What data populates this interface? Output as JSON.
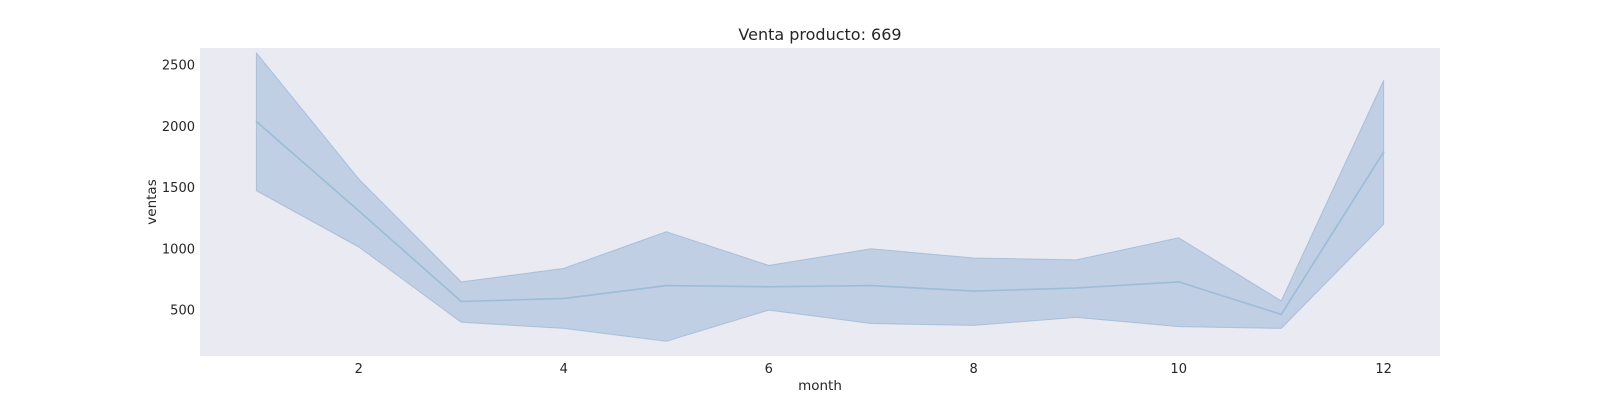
{
  "chart_data": {
    "type": "line",
    "title": "Venta producto: 669",
    "xlabel": "month",
    "ylabel": "ventas",
    "xlim": [
      0.45,
      12.55
    ],
    "ylim": [
      125,
      2640
    ],
    "x_ticks": [
      2,
      4,
      6,
      8,
      10,
      12
    ],
    "y_ticks": [
      500,
      1000,
      1500,
      2000,
      2500
    ],
    "grid": false,
    "legend": "none",
    "series": [
      {
        "x": [
          1,
          2,
          3,
          4,
          5,
          6,
          7,
          8,
          9,
          10,
          11,
          12
        ],
        "values": [
          2040,
          1310,
          570,
          595,
          700,
          690,
          700,
          655,
          680,
          730,
          465,
          1790
        ],
        "ci_lower": [
          1475,
          1015,
          400,
          350,
          245,
          500,
          390,
          375,
          440,
          365,
          350,
          1200
        ],
        "ci_upper": [
          2600,
          1570,
          730,
          840,
          1140,
          865,
          1000,
          925,
          910,
          1090,
          575,
          2375
        ]
      }
    ],
    "colors": {
      "line": "#9bbdd8",
      "band": "#8eafd0",
      "plot_background": "#eaeaf2",
      "text": "#262626"
    }
  }
}
